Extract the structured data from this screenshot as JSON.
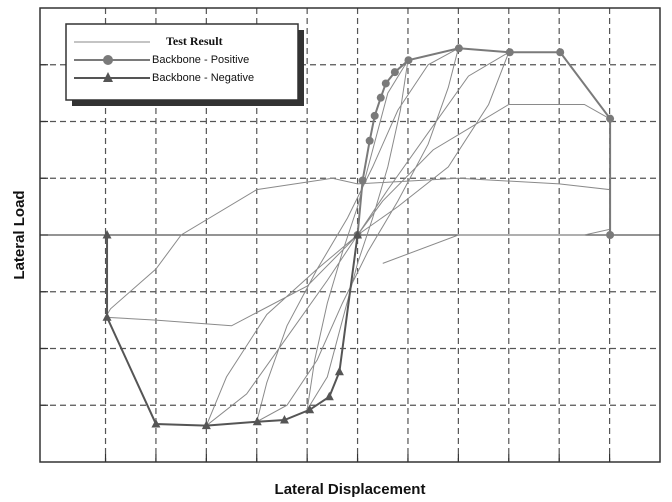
{
  "chart_data": {
    "type": "line",
    "xlabel": "Lateral Displacement",
    "ylabel": "Lateral Load",
    "xlim": [
      -6.3,
      6
    ],
    "ylim": [
      -4,
      4
    ],
    "xticks": [
      -5,
      -4,
      -3,
      -2,
      -1,
      0,
      1,
      2,
      3,
      4,
      5
    ],
    "yticks": [
      -3,
      -2,
      -1,
      0,
      1,
      2,
      3
    ],
    "grid": true,
    "legend": "upper left",
    "series": [
      {
        "name": "Test Result",
        "color": "#8a8a8a",
        "marker": "none",
        "x": [
          1,
          0.85,
          0.6,
          0.3,
          0,
          -0.3,
          -0.6,
          -1,
          -0.85,
          -0.6,
          -0.3,
          0,
          0.3,
          0.6,
          1,
          null,
          2,
          1.8,
          1.4,
          0.8,
          0.2,
          -0.3,
          -0.8,
          -1.4,
          -2,
          -1.8,
          -1.4,
          -0.8,
          -0.2,
          0.3,
          0.8,
          1.4,
          2,
          null,
          3,
          2.6,
          1.8,
          0.8,
          0,
          -0.6,
          -1.4,
          -2.2,
          -3,
          -2.6,
          -1.8,
          -0.8,
          0,
          0.6,
          1.4,
          2.2,
          3,
          null,
          5,
          4.5,
          3,
          1.5,
          0.5,
          0,
          -1,
          -2.5,
          -4,
          -5,
          -4.9,
          -4,
          -3.5,
          -2,
          -0.5,
          0,
          2,
          4,
          5,
          5,
          4.5,
          2,
          0.5
        ],
        "values": [
          3.08,
          2.2,
          1.2,
          0.3,
          -0.5,
          -1.5,
          -2.5,
          -3.08,
          -2.2,
          -1.2,
          -0.3,
          0.5,
          1.5,
          2.5,
          3.08,
          null,
          3.29,
          2.6,
          1.6,
          0.6,
          -0.3,
          -1.2,
          -2.2,
          -3,
          -3.29,
          -2.6,
          -1.6,
          -0.6,
          0.3,
          1.2,
          2.2,
          3,
          3.29,
          null,
          3.22,
          2.3,
          1.2,
          0.5,
          0,
          -0.8,
          -1.8,
          -2.8,
          -3.36,
          -2.5,
          -1.4,
          -0.6,
          0,
          0.8,
          1.8,
          2.8,
          3.22,
          null,
          2.05,
          2.3,
          2.3,
          1.5,
          0.6,
          0,
          -0.9,
          -1.6,
          -1.5,
          -1.45,
          -1.3,
          -0.6,
          0,
          0.8,
          1,
          0.9,
          1,
          0.9,
          0.8,
          0.1,
          0,
          0,
          -0.5
        ]
      },
      {
        "name": "Backbone - Positive",
        "color": "#7a7a7a",
        "marker": "circle",
        "x": [
          0,
          0.1,
          0.24,
          0.34,
          0.46,
          0.56,
          0.74,
          1.01,
          2.01,
          3.02,
          4.02,
          5.01,
          5.01
        ],
        "values": [
          0,
          0.96,
          1.66,
          2.1,
          2.42,
          2.67,
          2.87,
          3.08,
          3.29,
          3.22,
          3.22,
          2.05,
          0
        ]
      },
      {
        "name": "Backbone - Negative",
        "color": "#555555",
        "marker": "triangle",
        "x": [
          0,
          -0.36,
          -0.56,
          -0.95,
          -1.45,
          -1.99,
          -3,
          -4,
          -4.97,
          -4.97
        ],
        "values": [
          0,
          -2.41,
          -2.85,
          -3.08,
          -3.26,
          -3.29,
          -3.36,
          -3.33,
          -1.45,
          0
        ]
      }
    ]
  }
}
